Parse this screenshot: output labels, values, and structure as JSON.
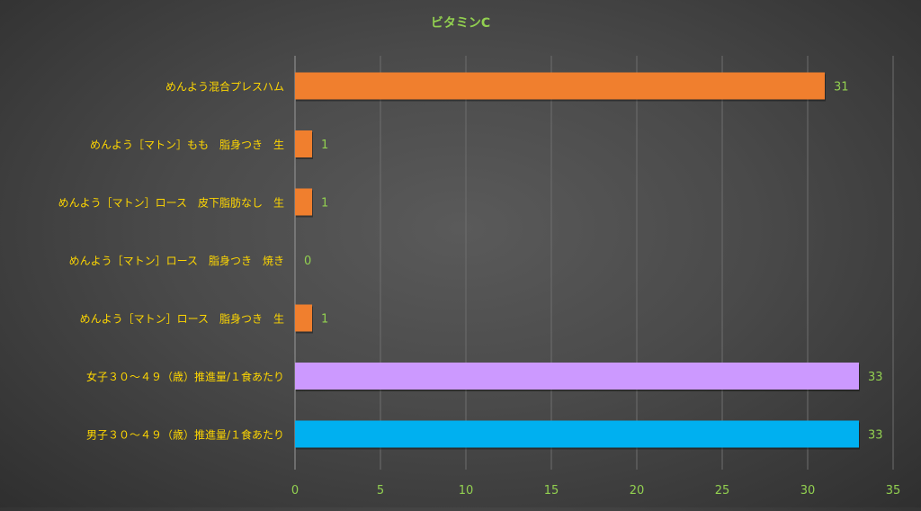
{
  "chart_data": {
    "type": "bar",
    "orientation": "horizontal",
    "title": "ビタミンC",
    "categories": [
      "めんよう混合プレスハム",
      "めんよう［マトン］もも　脂身つき　生",
      "めんよう［マトン］ロース　皮下脂肪なし　生",
      "めんよう［マトン］ロース　脂身つき　焼き",
      "めんよう［マトン］ロース　脂身つき　生",
      "女子３０～４９（歳）推進量/１食あたり",
      "男子３０～４９（歳）推進量/１食あたり"
    ],
    "values": [
      31,
      1,
      1,
      0,
      1,
      33,
      33
    ],
    "bar_colors": [
      "#f07f2e",
      "#f07f2e",
      "#f07f2e",
      "#f07f2e",
      "#f07f2e",
      "#cc99ff",
      "#00b0f0"
    ],
    "xlim": [
      0,
      35
    ],
    "xticks": [
      0,
      5,
      10,
      15,
      20,
      25,
      30,
      35
    ],
    "grid": true,
    "legend": "none",
    "colors": {
      "title": "#92d050",
      "category_label": "#ffd700",
      "tick_label": "#92d050",
      "data_label": "#92d050",
      "gridline": "#6e6e6e"
    }
  }
}
